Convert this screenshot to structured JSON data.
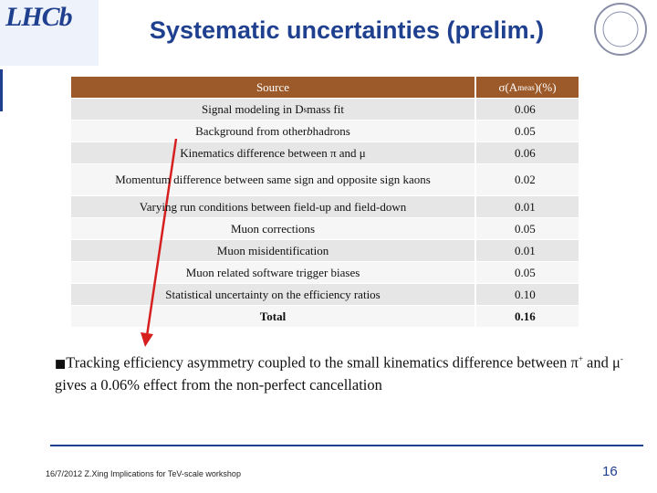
{
  "logo": "LHCb",
  "header": {
    "title": "Systematic uncertainties (prelim.)"
  },
  "table": {
    "header": [
      [
        {
          "text": "Source"
        }
      ],
      [
        {
          "text": "σ(A"
        },
        {
          "text": "meas",
          "style": "sub"
        },
        {
          "text": ")(%)"
        }
      ]
    ],
    "rows": [
      [
        [
          {
            "text": "Signal modeling in D"
          },
          {
            "text": "s",
            "style": "sub"
          },
          {
            "text": " mass fit"
          }
        ],
        [
          {
            "text": "0.06"
          }
        ]
      ],
      [
        [
          {
            "text": "Background from other "
          },
          {
            "text": "b",
            "style": "i"
          },
          {
            "text": " hadrons"
          }
        ],
        [
          {
            "text": "0.05"
          }
        ]
      ],
      [
        [
          {
            "text": "Kinematics difference between π and μ"
          }
        ],
        [
          {
            "text": "0.06"
          }
        ]
      ],
      [
        [
          {
            "text": "Momentum difference between same sign and opposite sign kaons"
          }
        ],
        [
          {
            "text": "0.02"
          }
        ]
      ],
      [
        [
          {
            "text": "Varying run conditions between field-up and field-down"
          }
        ],
        [
          {
            "text": "0.01"
          }
        ]
      ],
      [
        [
          {
            "text": "Muon corrections"
          }
        ],
        [
          {
            "text": "0.05"
          }
        ]
      ],
      [
        [
          {
            "text": "Muon misidentification"
          }
        ],
        [
          {
            "text": "0.01"
          }
        ]
      ],
      [
        [
          {
            "text": "Muon related software trigger biases"
          }
        ],
        [
          {
            "text": "0.05"
          }
        ]
      ],
      [
        [
          {
            "text": "Statistical uncertainty on the efficiency ratios"
          }
        ],
        [
          {
            "text": "0.10"
          }
        ]
      ],
      [
        [
          {
            "text": "Total",
            "style": "b"
          }
        ],
        [
          {
            "text": "0.16",
            "style": "b"
          }
        ]
      ]
    ]
  },
  "bullet": [
    {
      "text": "Tracking efficiency asymmetry coupled to the small kinematics difference between π"
    },
    {
      "text": "+",
      "style": "sup"
    },
    {
      "text": " and μ"
    },
    {
      "text": "-",
      "style": "sup"
    },
    {
      "text": " gives a 0.06% effect from the non-perfect cancellation"
    }
  ],
  "footer": {
    "text": "16/7/2012 Z.Xing Implications for TeV-scale workshop",
    "page": "16"
  }
}
